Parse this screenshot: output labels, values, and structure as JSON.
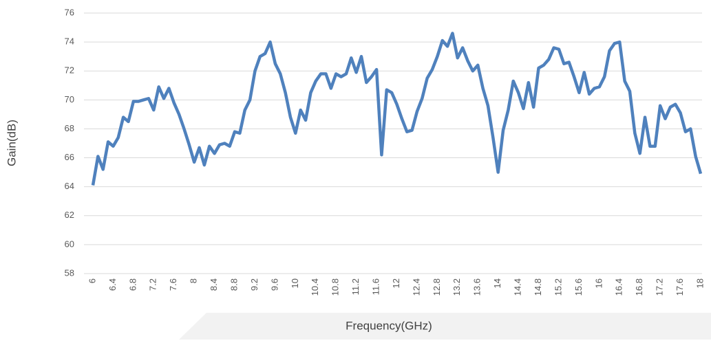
{
  "chart_data": {
    "type": "line",
    "x_label": "Frequency(GHz)",
    "y_label": "Gain(dB)",
    "x": [
      6.0,
      6.1,
      6.2,
      6.3,
      6.4,
      6.5,
      6.6,
      6.7,
      6.8,
      6.9,
      7.0,
      7.1,
      7.2,
      7.3,
      7.4,
      7.5,
      7.6,
      7.7,
      7.8,
      7.9,
      8.0,
      8.1,
      8.2,
      8.3,
      8.4,
      8.5,
      8.6,
      8.7,
      8.8,
      8.9,
      9.0,
      9.1,
      9.2,
      9.3,
      9.4,
      9.5,
      9.6,
      9.7,
      9.8,
      9.9,
      10.0,
      10.1,
      10.2,
      10.3,
      10.4,
      10.5,
      10.6,
      10.7,
      10.8,
      10.9,
      11.0,
      11.1,
      11.2,
      11.3,
      11.4,
      11.5,
      11.6,
      11.7,
      11.8,
      11.9,
      12.0,
      12.1,
      12.2,
      12.3,
      12.4,
      12.5,
      12.6,
      12.7,
      12.8,
      12.9,
      13.0,
      13.1,
      13.2,
      13.3,
      13.4,
      13.5,
      13.6,
      13.7,
      13.8,
      13.9,
      14.0,
      14.1,
      14.2,
      14.3,
      14.4,
      14.5,
      14.6,
      14.7,
      14.8,
      14.9,
      15.0,
      15.1,
      15.2,
      15.3,
      15.4,
      15.5,
      15.6,
      15.7,
      15.8,
      15.9,
      16.0,
      16.1,
      16.2,
      16.3,
      16.4,
      16.5,
      16.6,
      16.7,
      16.8,
      16.9,
      17.0,
      17.1,
      17.2,
      17.3,
      17.4,
      17.5,
      17.6,
      17.7,
      17.8,
      17.9,
      18.0
    ],
    "series": [
      {
        "color": "#4f81bd",
        "values": [
          64.1,
          66.1,
          65.2,
          67.1,
          66.8,
          67.4,
          68.8,
          68.5,
          69.9,
          69.9,
          70.0,
          70.1,
          69.3,
          70.9,
          70.1,
          70.8,
          69.8,
          69.0,
          68.0,
          66.9,
          65.7,
          66.7,
          65.5,
          66.8,
          66.3,
          66.9,
          67.0,
          66.8,
          67.8,
          67.7,
          69.3,
          70.0,
          72.0,
          73.0,
          73.2,
          74.0,
          72.5,
          71.8,
          70.5,
          68.8,
          67.7,
          69.3,
          68.6,
          70.5,
          71.3,
          71.8,
          71.8,
          70.8,
          71.8,
          71.6,
          71.8,
          72.9,
          71.9,
          73.0,
          71.2,
          71.6,
          72.1,
          66.2,
          70.7,
          70.5,
          69.7,
          68.7,
          67.8,
          67.9,
          69.2,
          70.1,
          71.5,
          72.1,
          73.0,
          74.1,
          73.7,
          74.6,
          72.9,
          73.6,
          72.7,
          72.0,
          72.4,
          70.8,
          69.6,
          67.4,
          65.0,
          67.9,
          69.3,
          71.3,
          70.5,
          69.4,
          71.2,
          69.5,
          72.2,
          72.4,
          72.8,
          73.6,
          73.5,
          72.5,
          72.6,
          71.6,
          70.5,
          71.9,
          70.4,
          70.8,
          70.9,
          71.6,
          73.4,
          73.9,
          74.0,
          71.3,
          70.6,
          67.7,
          66.3,
          68.8,
          66.8,
          66.8,
          69.6,
          68.7,
          69.5,
          69.7,
          69.1,
          67.8,
          68.0,
          66.1,
          64.9
        ]
      }
    ],
    "xlim": [
      6,
      18
    ],
    "xticks": [
      6,
      6.4,
      6.8,
      7.2,
      7.6,
      8,
      8.4,
      8.8,
      9.2,
      9.6,
      10,
      10.4,
      10.8,
      11.2,
      11.6,
      12,
      12.4,
      12.8,
      13.2,
      13.6,
      14,
      14.4,
      14.8,
      15.2,
      15.6,
      16,
      16.4,
      16.8,
      17.2,
      17.6,
      18
    ],
    "ylim": [
      58,
      76
    ],
    "yticks": [
      58,
      60,
      62,
      64,
      66,
      68,
      70,
      72,
      74,
      76
    ],
    "grid": true
  }
}
